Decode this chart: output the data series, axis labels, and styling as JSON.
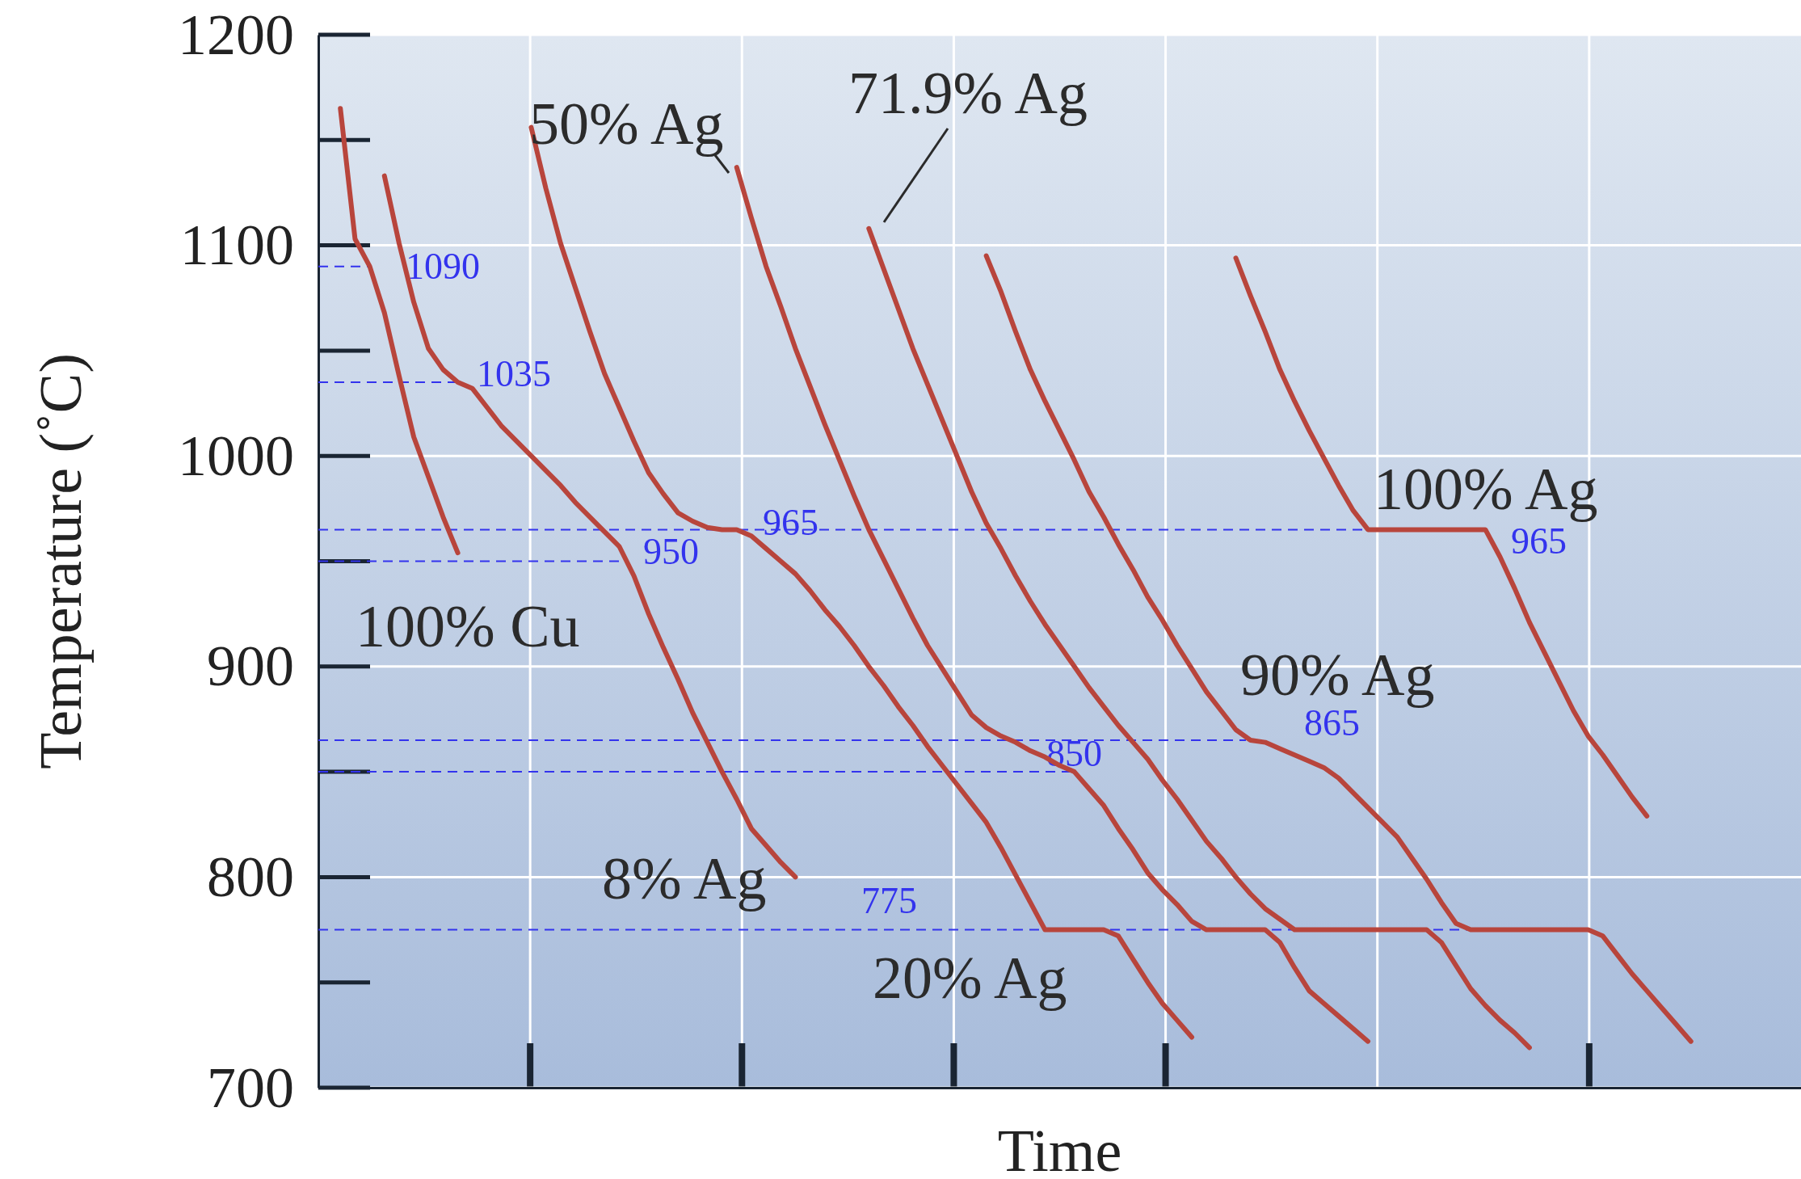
{
  "chart_data": {
    "type": "line",
    "xlabel": "Time",
    "ylabel": "Temperature (˚C)",
    "ylim": [
      700,
      1200
    ],
    "categories": [
      null,
      null,
      null,
      null,
      null,
      null,
      null,
      null,
      null,
      null,
      null,
      null,
      null,
      null,
      null,
      null,
      null,
      null,
      null,
      null,
      null,
      null,
      null,
      null,
      null,
      null,
      null,
      null,
      null,
      null,
      null,
      null,
      null,
      null,
      null,
      null,
      null,
      null,
      null,
      null,
      null,
      null,
      null,
      null,
      null,
      null,
      null,
      null,
      null,
      null,
      null,
      null,
      null,
      null,
      null,
      null,
      null,
      null,
      null,
      null,
      null,
      null,
      null,
      null,
      null,
      null,
      null,
      null,
      null,
      null,
      null,
      null,
      null,
      null,
      null,
      null,
      null,
      null,
      null,
      null,
      null,
      null,
      null,
      null,
      null,
      null,
      null,
      null,
      null,
      null,
      null,
      null,
      null,
      null,
      null,
      null,
      null,
      null,
      null,
      null,
      null
    ],
    "yticks": [
      700,
      800,
      900,
      1000,
      1100,
      1200
    ],
    "tick_labels": "y",
    "grid": "y",
    "line_style": "solid",
    "marker": "none",
    "series": [
      {
        "name": "100% Cu",
        "color": "#b8453c",
        "values": [
          null,
          1165,
          1103,
          1090,
          1068,
          1038,
          1009,
          990,
          971,
          954,
          null,
          null,
          null,
          null,
          null,
          null,
          null,
          null,
          null,
          null,
          null,
          null,
          null,
          null,
          null,
          null,
          null,
          null,
          null,
          null,
          null,
          null,
          null,
          null,
          null,
          null,
          null,
          null,
          null,
          null,
          null,
          null,
          null,
          null,
          null,
          null,
          null,
          null,
          null,
          null,
          null,
          null,
          null,
          null,
          null,
          null,
          null,
          null,
          null,
          null,
          null,
          null,
          null,
          null,
          null,
          null,
          null,
          null,
          null,
          null,
          null,
          null,
          null,
          null,
          null,
          null,
          null,
          null,
          null,
          null,
          null,
          null,
          null,
          null,
          null,
          null,
          null,
          null,
          null,
          null,
          null,
          null,
          null,
          null,
          null,
          null,
          null,
          null,
          null,
          null,
          null
        ]
      },
      {
        "name": "8% Ag",
        "color": "#b8453c",
        "values": [
          null,
          null,
          null,
          null,
          1133,
          1101,
          1073,
          1051,
          1041,
          1035,
          1032,
          1023,
          1014,
          1007,
          1000,
          993,
          986,
          978,
          971,
          964,
          957,
          943,
          925,
          909,
          894,
          878,
          864,
          850,
          837,
          823,
          815,
          807,
          800,
          null,
          null,
          null,
          null,
          null,
          null,
          null,
          null,
          null,
          null,
          null,
          null,
          null,
          null,
          null,
          null,
          null,
          null,
          null,
          null,
          null,
          null,
          null,
          null,
          null,
          null,
          null,
          null,
          null,
          null,
          null,
          null,
          null,
          null,
          null,
          null,
          null,
          null,
          null,
          null,
          null,
          null,
          null,
          null,
          null,
          null,
          null,
          null,
          null,
          null,
          null,
          null,
          null,
          null,
          null,
          null,
          null,
          null,
          null,
          null,
          null,
          null,
          null,
          null,
          null,
          null,
          null,
          null
        ]
      },
      {
        "name": "20% Ag",
        "color": "#b8453c",
        "values": [
          null,
          null,
          null,
          null,
          null,
          null,
          null,
          null,
          null,
          null,
          null,
          null,
          null,
          null,
          1156,
          1127,
          1101,
          1080,
          1059,
          1039,
          1023,
          1007,
          992,
          982,
          973,
          969,
          966,
          965,
          965,
          962,
          956,
          950,
          944,
          936,
          927,
          919,
          910,
          900,
          891,
          881,
          872,
          862,
          853,
          844,
          835,
          826,
          814,
          801,
          788,
          775,
          775,
          775,
          775,
          775,
          772,
          761,
          750,
          740,
          732,
          724,
          null,
          null,
          null,
          null,
          null,
          null,
          null,
          null,
          null,
          null,
          null,
          null,
          null,
          null,
          null,
          null,
          null,
          null,
          null,
          null,
          null,
          null,
          null,
          null,
          null,
          null,
          null,
          null,
          null,
          null,
          null,
          null,
          null,
          null,
          null,
          null,
          null,
          null,
          null,
          null,
          null
        ]
      },
      {
        "name": "50% Ag",
        "color": "#b8453c",
        "values": [
          null,
          null,
          null,
          null,
          null,
          null,
          null,
          null,
          null,
          null,
          null,
          null,
          null,
          null,
          null,
          null,
          null,
          null,
          null,
          null,
          null,
          null,
          null,
          null,
          null,
          null,
          null,
          null,
          1137,
          1113,
          1090,
          1071,
          1051,
          1033,
          1015,
          998,
          981,
          965,
          951,
          937,
          923,
          910,
          899,
          888,
          877,
          871,
          867,
          864,
          860,
          857,
          853,
          850,
          842,
          834,
          823,
          813,
          802,
          794,
          787,
          779,
          775,
          775,
          775,
          775,
          775,
          769,
          757,
          746,
          740,
          734,
          728,
          722,
          null,
          null,
          null,
          null,
          null,
          null,
          null,
          null,
          null,
          null,
          null,
          null,
          null,
          null,
          null,
          null,
          null,
          null,
          null,
          null,
          null,
          null,
          null,
          null,
          null,
          null,
          null,
          null,
          null
        ]
      },
      {
        "name": "71.9% Ag",
        "color": "#b8453c",
        "values": [
          null,
          null,
          null,
          null,
          null,
          null,
          null,
          null,
          null,
          null,
          null,
          null,
          null,
          null,
          null,
          null,
          null,
          null,
          null,
          null,
          null,
          null,
          null,
          null,
          null,
          null,
          null,
          null,
          null,
          null,
          null,
          null,
          null,
          null,
          null,
          null,
          null,
          1108,
          1089,
          1070,
          1051,
          1034,
          1017,
          1000,
          983,
          968,
          956,
          943,
          931,
          920,
          910,
          900,
          890,
          881,
          872,
          864,
          856,
          846,
          837,
          827,
          817,
          809,
          800,
          792,
          785,
          780,
          775,
          775,
          775,
          775,
          775,
          775,
          775,
          775,
          775,
          775,
          769,
          758,
          747,
          739,
          732,
          726,
          719,
          null,
          null,
          null,
          null,
          null,
          null,
          null,
          null,
          null,
          null,
          null,
          null,
          null,
          null,
          null,
          null,
          null,
          null
        ]
      },
      {
        "name": "90% Ag",
        "color": "#b8453c",
        "values": [
          null,
          null,
          null,
          null,
          null,
          null,
          null,
          null,
          null,
          null,
          null,
          null,
          null,
          null,
          null,
          null,
          null,
          null,
          null,
          null,
          null,
          null,
          null,
          null,
          null,
          null,
          null,
          null,
          null,
          null,
          null,
          null,
          null,
          null,
          null,
          null,
          null,
          null,
          null,
          null,
          null,
          null,
          null,
          null,
          null,
          1095,
          1078,
          1059,
          1041,
          1026,
          1012,
          998,
          983,
          971,
          958,
          946,
          933,
          922,
          910,
          899,
          888,
          879,
          870,
          865,
          864,
          861,
          858,
          855,
          852,
          847,
          840,
          833,
          826,
          819,
          809,
          799,
          788,
          778,
          775,
          775,
          775,
          775,
          775,
          775,
          775,
          775,
          775,
          772,
          763,
          754,
          746,
          738,
          730,
          722,
          null,
          null,
          null,
          null,
          null,
          null,
          null
        ]
      },
      {
        "name": "100% Ag",
        "color": "#b8453c",
        "values": [
          null,
          null,
          null,
          null,
          null,
          null,
          null,
          null,
          null,
          null,
          null,
          null,
          null,
          null,
          null,
          null,
          null,
          null,
          null,
          null,
          null,
          null,
          null,
          null,
          null,
          null,
          null,
          null,
          null,
          null,
          null,
          null,
          null,
          null,
          null,
          null,
          null,
          null,
          null,
          null,
          null,
          null,
          null,
          null,
          null,
          null,
          null,
          null,
          null,
          null,
          null,
          null,
          null,
          null,
          null,
          null,
          null,
          null,
          null,
          null,
          null,
          null,
          1094,
          1076,
          1059,
          1041,
          1026,
          1012,
          999,
          986,
          974,
          965,
          965,
          965,
          965,
          965,
          965,
          965,
          965,
          965,
          952,
          937,
          921,
          907,
          893,
          879,
          867,
          858,
          848,
          838,
          829,
          null,
          null,
          null,
          null,
          null,
          null,
          null,
          null,
          null,
          null
        ]
      }
    ],
    "ref_lines": [
      {
        "axis": "y",
        "value": 1090,
        "label": "1090",
        "color": "#3333ee",
        "line_style": "dashed"
      },
      {
        "axis": "y",
        "value": 1035,
        "label": "1035",
        "color": "#3333ee",
        "line_style": "dashed"
      },
      {
        "axis": "y",
        "value": 965,
        "label": "965",
        "color": "#3333ee",
        "line_style": "dashed"
      },
      {
        "axis": "y",
        "value": 950,
        "label": "950",
        "color": "#3333ee",
        "line_style": "dashed"
      },
      {
        "axis": "y",
        "value": 865,
        "label": "865",
        "color": "#3333ee",
        "line_style": "dashed"
      },
      {
        "axis": "y",
        "value": 850,
        "label": "850",
        "color": "#3333ee",
        "line_style": "dashed"
      },
      {
        "axis": "y",
        "value": 775,
        "label": "775",
        "color": "#3333ee",
        "line_style": "dashed"
      }
    ],
    "annotations": [
      "965"
    ]
  }
}
